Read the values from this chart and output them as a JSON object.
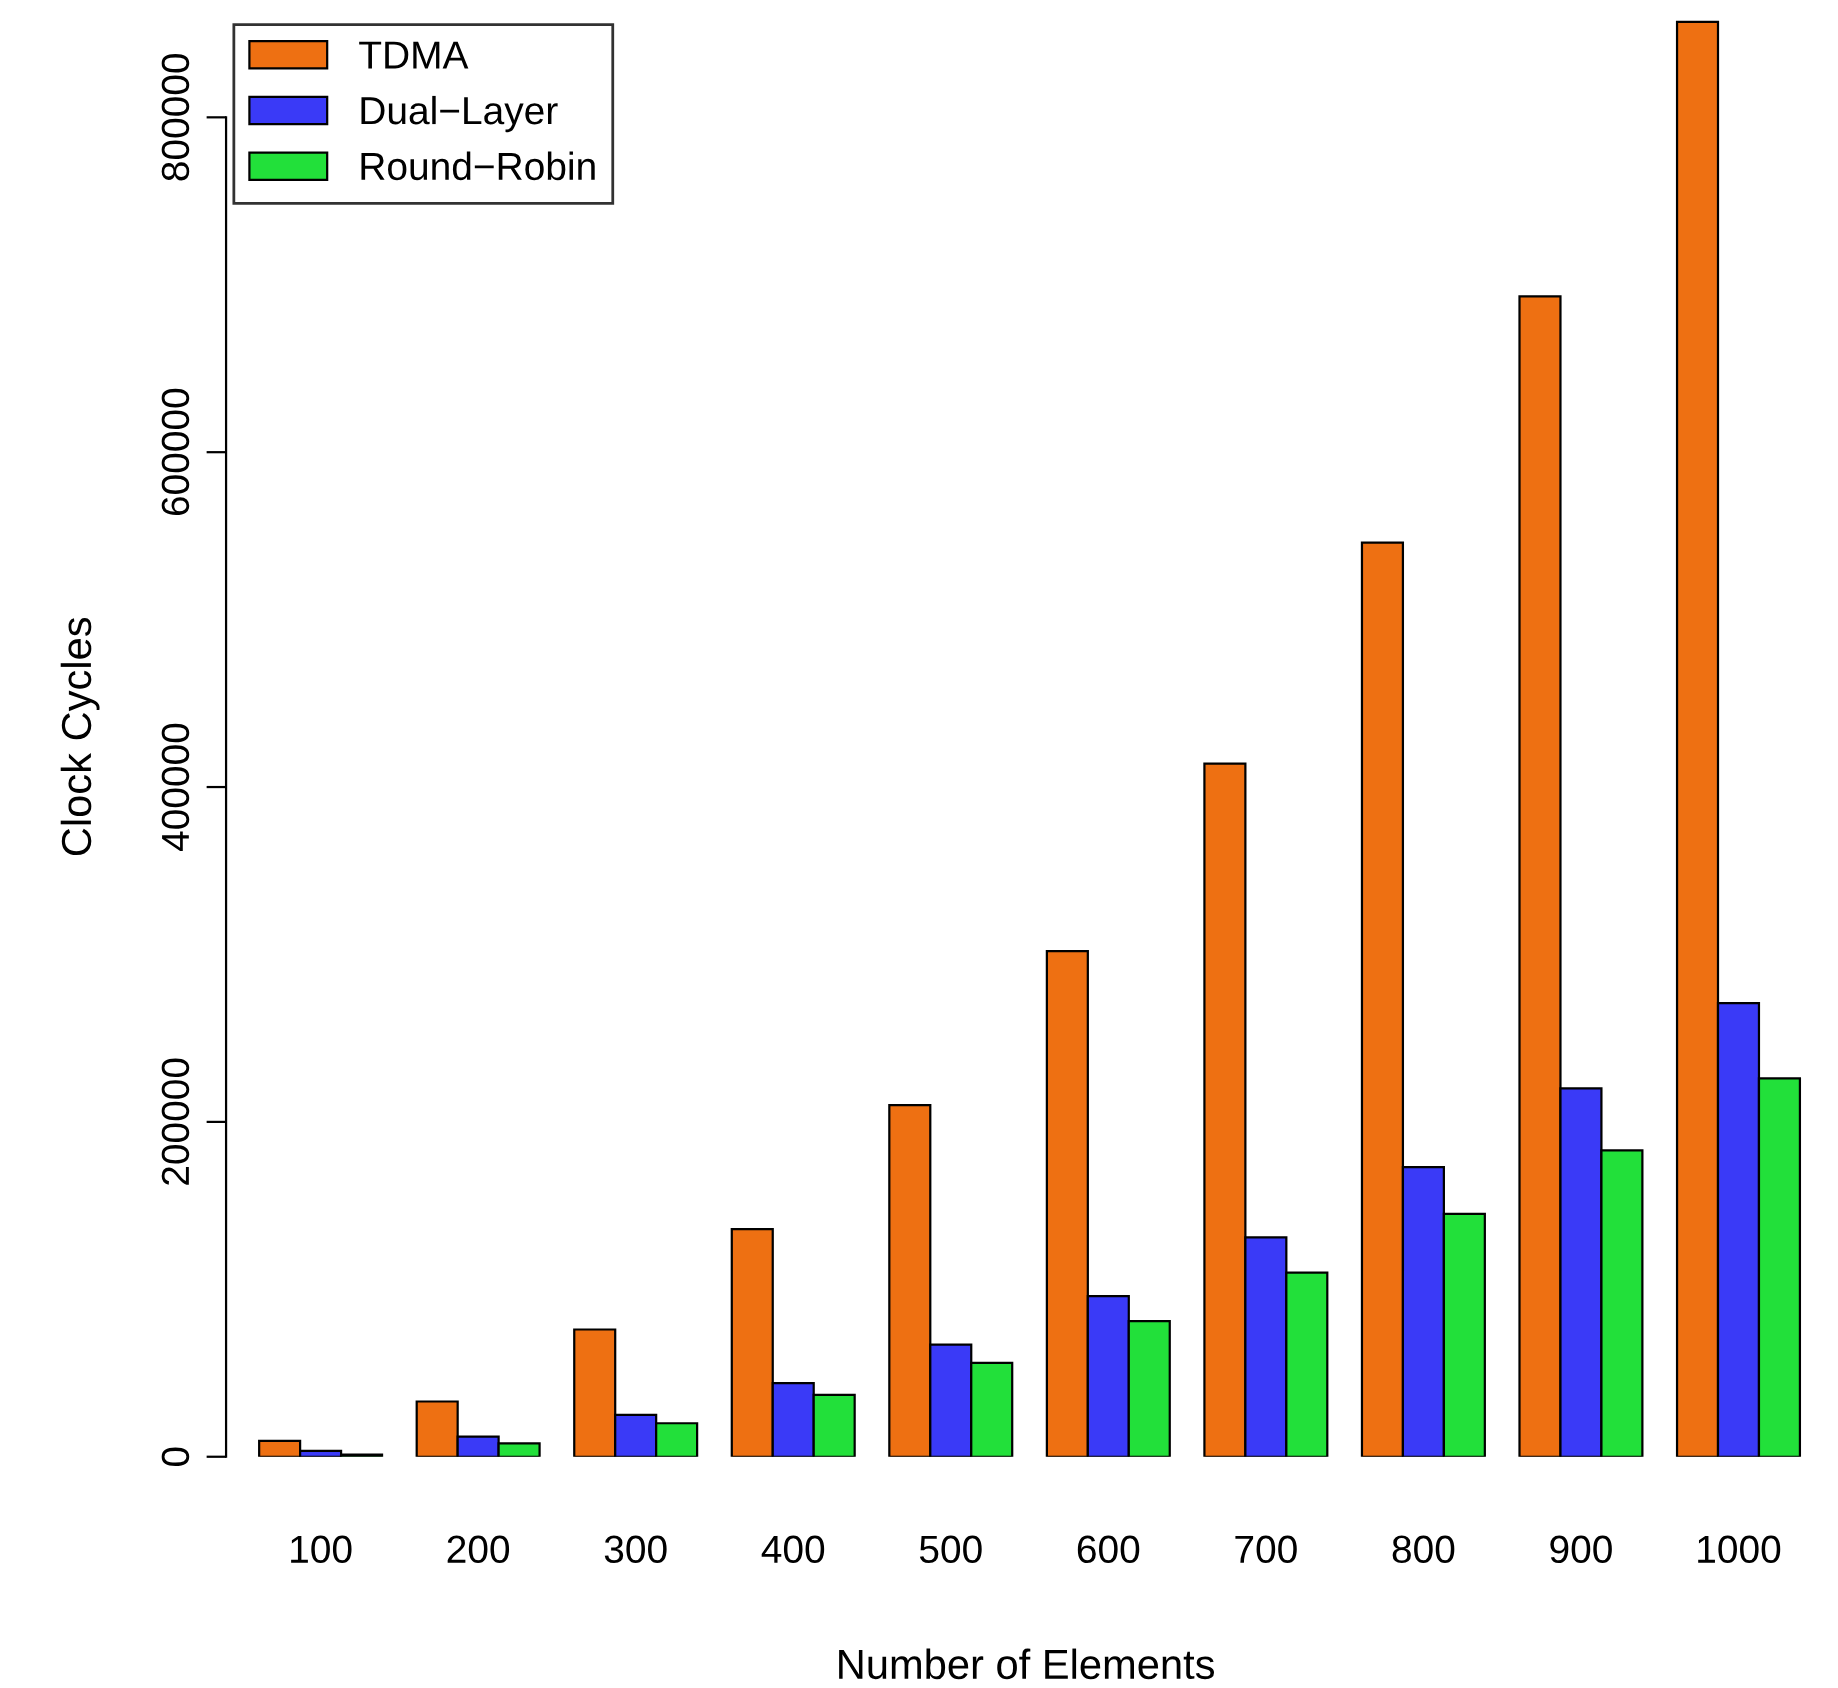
{
  "chart_data": {
    "type": "bar",
    "xlabel": "Number of Elements",
    "ylabel": "Clock Cycles",
    "categories": [
      "100",
      "200",
      "300",
      "400",
      "500",
      "600",
      "700",
      "800",
      "900",
      "1000"
    ],
    "series": [
      {
        "name": "TDMA",
        "color": "#ee7012",
        "values": [
          9500,
          33000,
          76000,
          136000,
          210000,
          302000,
          414000,
          546000,
          693000,
          857000
        ]
      },
      {
        "name": "Dual−Layer",
        "color": "#3a3af7",
        "values": [
          3500,
          12000,
          25000,
          44000,
          67000,
          96000,
          131000,
          173000,
          220000,
          271000
        ]
      },
      {
        "name": "Round−Robin",
        "color": "#22e03a",
        "values": [
          1200,
          8000,
          20000,
          37000,
          56000,
          81000,
          110000,
          145000,
          183000,
          226000
        ]
      }
    ],
    "ylim": [
      0,
      860000
    ],
    "yticks": [
      0,
      200000,
      400000,
      600000,
      800000
    ],
    "grid": false,
    "legend": "top left"
  }
}
